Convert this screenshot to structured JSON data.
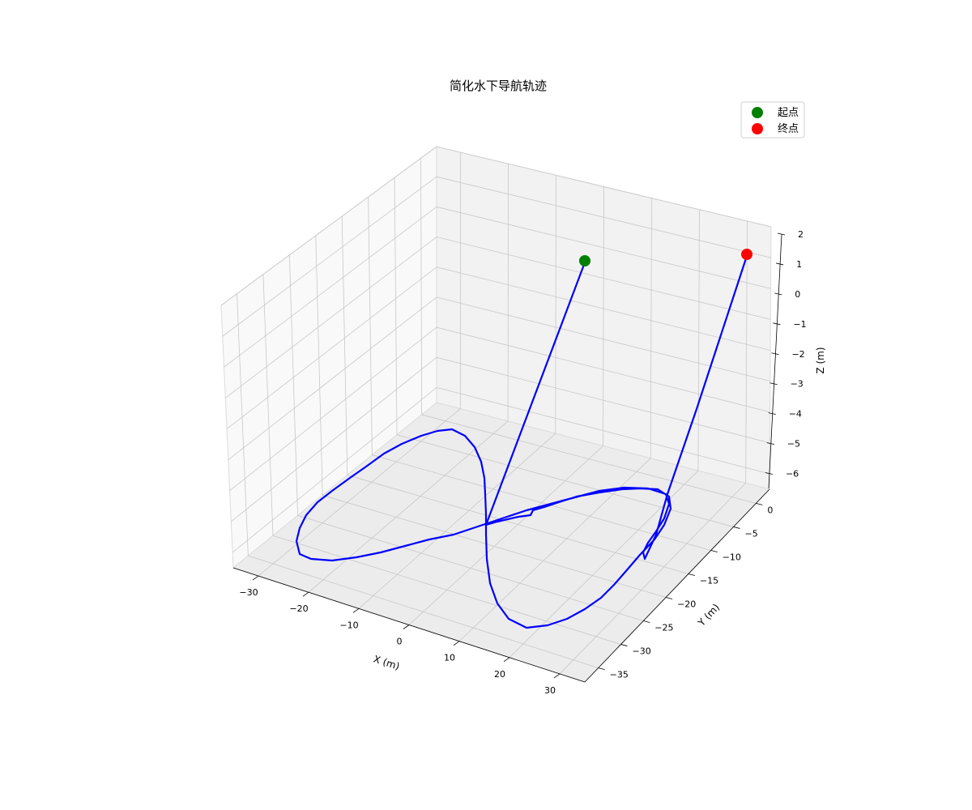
{
  "chart_data": {
    "type": "line",
    "projection": "3d",
    "title": "简化水下导航轨迹",
    "xlabel": "X (m)",
    "ylabel": "Y (m)",
    "zlabel": "Z (m)",
    "xlim": [
      -35,
      35
    ],
    "ylim": [
      -38,
      3
    ],
    "zlim": [
      -6.5,
      2
    ],
    "x_ticks": [
      -30,
      -20,
      -10,
      0,
      10,
      20,
      30
    ],
    "y_ticks": [
      0,
      -5,
      -10,
      -15,
      -20,
      -25,
      -30,
      -35
    ],
    "z_ticks": [
      2,
      1,
      0,
      -1,
      -2,
      -3,
      -4,
      -5,
      -6
    ],
    "grid": true,
    "legend_position": "top-right",
    "legend": [
      {
        "label": "起点",
        "color": "#008000"
      },
      {
        "label": "终点",
        "color": "#ff0000"
      }
    ],
    "trajectory": {
      "color": "#0000ff",
      "description_points": [
        {
          "x": 0,
          "y": 0,
          "z": 1
        },
        {
          "x": 0,
          "y": 0,
          "z": -5
        },
        {
          "x": 10,
          "y": -5,
          "z": -5
        },
        {
          "x": 20,
          "y": -10,
          "z": -5
        },
        {
          "x": 30,
          "y": -15,
          "z": -5
        },
        {
          "x": 25,
          "y": -22,
          "z": -5
        },
        {
          "x": 15,
          "y": -28,
          "z": -5
        },
        {
          "x": 5,
          "y": -26,
          "z": -5
        },
        {
          "x": 0,
          "y": -18,
          "z": -5
        },
        {
          "x": 0,
          "y": -6,
          "z": -5
        },
        {
          "x": -10,
          "y": -3,
          "z": -5
        },
        {
          "x": -20,
          "y": -6,
          "z": -5
        },
        {
          "x": -30,
          "y": -12,
          "z": -5
        },
        {
          "x": -25,
          "y": -18,
          "z": -5
        },
        {
          "x": -15,
          "y": -20,
          "z": -5
        },
        {
          "x": -5,
          "y": -17,
          "z": -5
        },
        {
          "x": 5,
          "y": -16,
          "z": -5
        },
        {
          "x": 25,
          "y": -20,
          "z": -5
        },
        {
          "x": 27,
          "y": -20,
          "z": 1
        }
      ]
    },
    "start_point": {
      "x": 0,
      "y": 0,
      "z": 1,
      "color": "#008000"
    },
    "end_point": {
      "x": 27,
      "y": -20,
      "z": 1,
      "color": "#ff0000"
    }
  }
}
